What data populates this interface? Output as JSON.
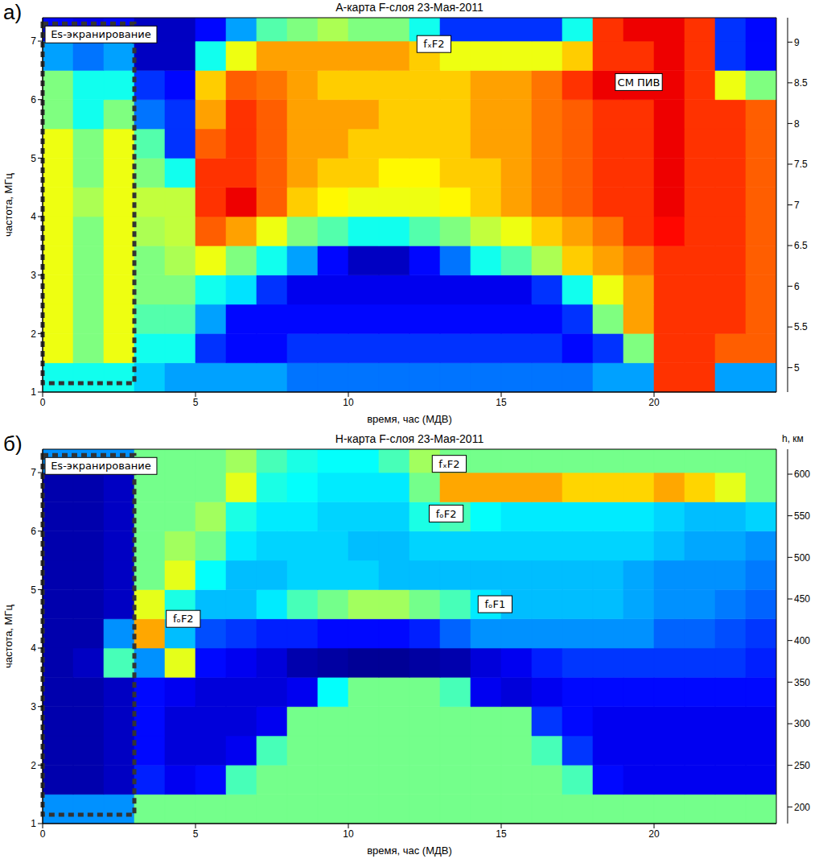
{
  "chart_data": [
    {
      "type": "heatmap",
      "panel_label": "а)",
      "title": "А-карта F-слоя 23-Мая-2011",
      "x_label": "время, час (МДВ)",
      "y_label": "частота, МГц",
      "xlim": [
        0,
        24
      ],
      "ylim": [
        1,
        7.4
      ],
      "xticks": [
        0,
        5,
        10,
        15,
        20
      ],
      "yticks": [
        1,
        2,
        3,
        4,
        5,
        6,
        7
      ],
      "x_edges": [
        0,
        1,
        2,
        3,
        4,
        5,
        6,
        7,
        8,
        9,
        10,
        11,
        12,
        13,
        14,
        15,
        16,
        17,
        18,
        19,
        20,
        21,
        22,
        23,
        24
      ],
      "y_edges": [
        1,
        1.5,
        2,
        2.5,
        3,
        3.5,
        4,
        4.5,
        5,
        5.5,
        6,
        6.5,
        7,
        7.4
      ],
      "values": [
        [
          6.5,
          6.5,
          6.5,
          6.2,
          6.0,
          6.0,
          6.0,
          6.0,
          5.8,
          5.8,
          5.8,
          5.8,
          5.8,
          5.8,
          5.8,
          5.8,
          5.8,
          5.8,
          6.0,
          6.0,
          8.5,
          8.5,
          6.0,
          6.0
        ],
        [
          7.5,
          7.0,
          7.5,
          6.5,
          6.5,
          5.5,
          5.3,
          5.3,
          5.5,
          5.5,
          5.5,
          5.5,
          5.5,
          5.5,
          5.5,
          5.5,
          5.5,
          5.3,
          5.5,
          7.0,
          8.5,
          8.5,
          8.3,
          8.3
        ],
        [
          7.5,
          7.0,
          7.5,
          6.8,
          6.8,
          6.0,
          5.3,
          5.3,
          5.3,
          5.3,
          5.3,
          5.3,
          5.3,
          5.3,
          5.3,
          5.3,
          5.3,
          5.5,
          7.0,
          8.0,
          8.5,
          8.5,
          8.5,
          8.3
        ],
        [
          7.5,
          7.0,
          7.5,
          7.0,
          7.0,
          6.5,
          6.3,
          5.5,
          5.2,
          5.2,
          5.2,
          5.2,
          5.2,
          5.2,
          5.2,
          5.2,
          5.5,
          6.5,
          7.5,
          8.0,
          8.5,
          8.5,
          8.5,
          8.3
        ],
        [
          7.5,
          7.0,
          7.5,
          7.0,
          7.2,
          7.5,
          7.0,
          6.5,
          6.0,
          5.3,
          5.0,
          5.0,
          5.3,
          5.8,
          6.5,
          6.8,
          7.2,
          7.8,
          8.0,
          8.2,
          8.5,
          8.5,
          8.5,
          8.3
        ],
        [
          7.5,
          7.0,
          7.5,
          7.2,
          7.3,
          8.3,
          8.0,
          7.5,
          7.0,
          6.8,
          6.5,
          6.5,
          6.8,
          7.0,
          7.3,
          7.5,
          7.8,
          8.0,
          8.2,
          8.5,
          8.7,
          8.5,
          8.5,
          8.3
        ],
        [
          7.5,
          7.2,
          7.5,
          7.3,
          7.3,
          8.5,
          8.8,
          8.3,
          7.8,
          7.6,
          7.5,
          7.5,
          7.5,
          7.6,
          7.8,
          8.0,
          8.2,
          8.3,
          8.5,
          8.5,
          8.8,
          8.5,
          8.5,
          8.3
        ],
        [
          7.5,
          7.0,
          7.5,
          7.0,
          6.5,
          8.5,
          8.5,
          8.3,
          8.0,
          7.8,
          7.8,
          7.6,
          7.6,
          7.8,
          7.8,
          8.0,
          8.2,
          8.3,
          8.5,
          8.5,
          8.8,
          8.5,
          8.5,
          8.3
        ],
        [
          7.5,
          7.0,
          7.5,
          6.8,
          5.5,
          8.3,
          8.5,
          8.3,
          8.0,
          8.0,
          7.8,
          7.8,
          7.8,
          7.8,
          8.0,
          8.0,
          8.2,
          8.3,
          8.5,
          8.5,
          8.8,
          8.5,
          8.5,
          8.3
        ],
        [
          7.0,
          6.5,
          7.0,
          5.8,
          5.5,
          8.0,
          8.5,
          8.3,
          8.0,
          8.0,
          8.0,
          7.8,
          7.8,
          7.8,
          8.0,
          8.0,
          8.2,
          8.3,
          8.5,
          8.5,
          8.8,
          8.5,
          8.5,
          8.3
        ],
        [
          7.0,
          6.5,
          6.5,
          5.5,
          5.3,
          7.8,
          8.3,
          8.2,
          8.0,
          7.8,
          7.8,
          7.8,
          7.8,
          7.8,
          8.0,
          8.0,
          8.2,
          8.5,
          8.8,
          8.8,
          8.8,
          8.5,
          7.5,
          7.0
        ],
        [
          6.0,
          5.8,
          6.0,
          5.0,
          5.0,
          6.5,
          7.5,
          8.0,
          8.0,
          8.0,
          8.0,
          8.0,
          7.8,
          7.5,
          7.5,
          7.5,
          7.5,
          7.8,
          8.5,
          8.5,
          8.8,
          8.5,
          5.5,
          5.3
        ],
        [
          5.3,
          5.2,
          5.3,
          5.0,
          5.0,
          5.3,
          6.0,
          6.8,
          7.0,
          7.2,
          7.0,
          7.0,
          6.5,
          5.5,
          5.5,
          5.5,
          5.5,
          6.5,
          8.5,
          8.8,
          8.8,
          8.5,
          5.5,
          5.3
        ]
      ],
      "colorbar": {
        "range": [
          4.7,
          9.3
        ],
        "ticks": [
          5,
          5.5,
          6,
          6.5,
          7,
          7.5,
          8,
          8.5,
          9
        ]
      },
      "box": {
        "label": "Es-экранирование",
        "x": [
          0,
          3
        ],
        "y": [
          1.15,
          7.3
        ]
      },
      "annotations": [
        {
          "text": "fₓF2",
          "x": 12.8,
          "y": 6.95
        },
        {
          "text": "СМ ПИВ",
          "x": 19.5,
          "y": 6.3
        }
      ]
    },
    {
      "type": "heatmap",
      "panel_label": "б)",
      "title": "Н-карта F-слоя 23-Мая-2011",
      "x_label": "время, час (МДВ)",
      "y_label": "частота, МГц",
      "xlim": [
        0,
        24
      ],
      "ylim": [
        1,
        7.4
      ],
      "xticks": [
        0,
        5,
        10,
        15,
        20
      ],
      "yticks": [
        1,
        2,
        3,
        4,
        5,
        6,
        7
      ],
      "x_edges": [
        0,
        1,
        2,
        3,
        4,
        5,
        6,
        7,
        8,
        9,
        10,
        11,
        12,
        13,
        14,
        15,
        16,
        17,
        18,
        19,
        20,
        21,
        22,
        23,
        24
      ],
      "y_edges": [
        1,
        1.5,
        2,
        2.5,
        3,
        3.5,
        4,
        4.5,
        5,
        5.5,
        6,
        6.5,
        7,
        7.4
      ],
      "values": [
        [
          300,
          300,
          300,
          400,
          400,
          400,
          400,
          400,
          400,
          400,
          400,
          400,
          400,
          400,
          400,
          400,
          400,
          400,
          400,
          400,
          400,
          400,
          400,
          400
        ],
        [
          200,
          200,
          210,
          250,
          230,
          240,
          380,
          400,
          400,
          400,
          400,
          400,
          400,
          400,
          400,
          400,
          400,
          380,
          240,
          230,
          230,
          230,
          230,
          230
        ],
        [
          200,
          200,
          210,
          240,
          220,
          220,
          230,
          380,
          400,
          400,
          400,
          400,
          400,
          400,
          400,
          400,
          380,
          260,
          230,
          230,
          230,
          230,
          230,
          230
        ],
        [
          200,
          200,
          210,
          240,
          220,
          220,
          220,
          230,
          400,
          400,
          400,
          400,
          400,
          400,
          400,
          400,
          260,
          240,
          230,
          230,
          230,
          230,
          230,
          230
        ],
        [
          200,
          200,
          210,
          240,
          230,
          220,
          220,
          220,
          230,
          350,
          400,
          400,
          400,
          380,
          230,
          220,
          230,
          240,
          240,
          240,
          240,
          240,
          240,
          240
        ],
        [
          200,
          210,
          380,
          300,
          450,
          240,
          230,
          220,
          200,
          195,
          190,
          190,
          195,
          200,
          220,
          230,
          250,
          260,
          260,
          260,
          260,
          260,
          260,
          250
        ],
        [
          200,
          200,
          300,
          500,
          320,
          270,
          260,
          250,
          250,
          240,
          240,
          240,
          250,
          280,
          300,
          300,
          300,
          300,
          300,
          300,
          280,
          280,
          270,
          260
        ],
        [
          200,
          200,
          210,
          450,
          360,
          320,
          320,
          340,
          380,
          400,
          420,
          420,
          400,
          380,
          340,
          320,
          320,
          320,
          320,
          310,
          300,
          300,
          290,
          280
        ],
        [
          200,
          200,
          210,
          400,
          450,
          350,
          320,
          320,
          330,
          330,
          330,
          320,
          320,
          320,
          320,
          320,
          320,
          320,
          320,
          310,
          300,
          300,
          300,
          290
        ],
        [
          200,
          200,
          210,
          400,
          420,
          400,
          340,
          330,
          330,
          330,
          320,
          320,
          330,
          330,
          330,
          330,
          330,
          330,
          330,
          330,
          320,
          310,
          310,
          300
        ],
        [
          200,
          200,
          210,
          400,
          400,
          420,
          360,
          340,
          340,
          330,
          330,
          330,
          360,
          380,
          350,
          340,
          340,
          340,
          340,
          340,
          330,
          320,
          320,
          330
        ],
        [
          200,
          200,
          210,
          400,
          400,
          400,
          450,
          360,
          350,
          340,
          340,
          340,
          400,
          500,
          500,
          500,
          500,
          480,
          480,
          480,
          500,
          480,
          450,
          400
        ],
        [
          300,
          300,
          300,
          400,
          400,
          400,
          420,
          380,
          360,
          350,
          350,
          380,
          420,
          400,
          400,
          400,
          400,
          400,
          400,
          400,
          400,
          400,
          400,
          400
        ]
      ],
      "colorbar": {
        "range": [
          180,
          630
        ],
        "ticks": [
          200,
          250,
          300,
          350,
          400,
          450,
          500,
          550,
          600
        ],
        "label": "h, км"
      },
      "box": {
        "label": "Es-экранирование",
        "x": [
          0,
          3
        ],
        "y": [
          1.15,
          7.3
        ]
      },
      "annotations": [
        {
          "text": "fₓF2",
          "x": 13.3,
          "y": 7.15
        },
        {
          "text": "fₒF2",
          "x": 13.2,
          "y": 6.3
        },
        {
          "text": "fₒF2",
          "x": 4.6,
          "y": 4.5
        },
        {
          "text": "fₒF1",
          "x": 14.8,
          "y": 4.75
        }
      ]
    }
  ]
}
